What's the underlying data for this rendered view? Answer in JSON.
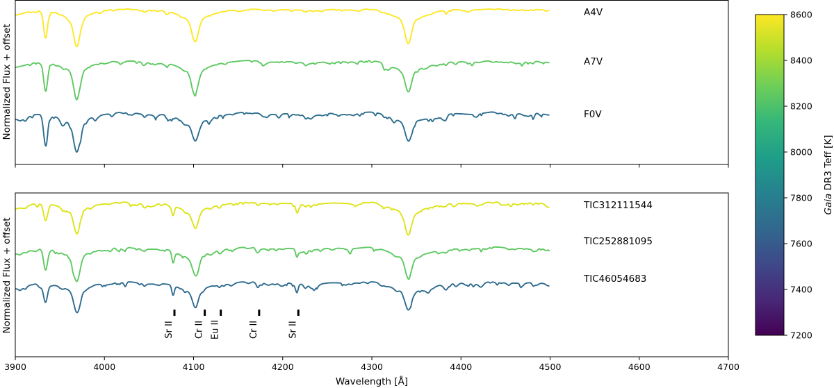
{
  "chart_data": [
    {
      "type": "line",
      "panel": "top",
      "ylabel": "Normalized Flux + offset",
      "xlabel": "",
      "xlim": [
        3900,
        4700
      ],
      "xticks": [
        3900,
        4000,
        4100,
        4200,
        4300,
        4400,
        4500,
        4600,
        4700
      ],
      "xrange_data": [
        3900,
        4500
      ],
      "show_tick_labels": false,
      "series": [
        {
          "name": "A4V",
          "teff": 8600,
          "color": "#fde725",
          "noise": 0.35,
          "sr_ii": false,
          "depths": {
            "CaK": 0.95,
            "CaH": 1.05,
            "Hd": 1.0,
            "Hg": 1.05
          }
        },
        {
          "name": "A7V",
          "teff": 8300,
          "color": "#5ec962",
          "noise": 0.55,
          "sr_ii": false,
          "depths": {
            "CaK": 1.0,
            "CaH": 1.05,
            "Hd": 0.95,
            "Hg": 0.95
          }
        },
        {
          "name": "F0V",
          "teff": 7700,
          "color": "#2c6d8e",
          "noise": 0.8,
          "sr_ii": false,
          "depths": {
            "CaK": 1.1,
            "CaH": 1.1,
            "Hd": 0.85,
            "Hg": 0.85
          }
        }
      ]
    },
    {
      "type": "line",
      "panel": "bottom",
      "xlabel": "Wavelength [Å]",
      "ylabel": "Normalized Flux + offset",
      "xlim": [
        3900,
        4700
      ],
      "xticks": [
        3900,
        4000,
        4100,
        4200,
        4300,
        4400,
        4500,
        4600,
        4700
      ],
      "xrange_data": [
        3900,
        4500
      ],
      "series": [
        {
          "name": "TIC312111544",
          "teff": 8580,
          "color": "#dde318",
          "noise": 0.55,
          "sr_ii": true,
          "depths": {
            "CaK": 0.6,
            "CaH": 0.85,
            "Hd": 0.75,
            "Hg": 0.95
          }
        },
        {
          "name": "TIC252881095",
          "teff": 8300,
          "color": "#5ec962",
          "noise": 0.6,
          "sr_ii": true,
          "depths": {
            "CaK": 0.75,
            "CaH": 0.95,
            "Hd": 0.8,
            "Hg": 0.95
          }
        },
        {
          "name": "TIC46054683",
          "teff": 7720,
          "color": "#2e6b8e",
          "noise": 0.7,
          "sr_ii": true,
          "depths": {
            "CaK": 0.6,
            "CaH": 0.8,
            "Hd": 0.7,
            "Hg": 0.85
          }
        }
      ],
      "line_markers": [
        {
          "label": "Sr II",
          "wavelength": 4077
        },
        {
          "label": "Cr II",
          "wavelength": 4111
        },
        {
          "label": "Eu II",
          "wavelength": 4129
        },
        {
          "label": "Cr II",
          "wavelength": 4172
        },
        {
          "label": "Sr II",
          "wavelength": 4216
        }
      ]
    }
  ],
  "colorbar": {
    "label_italic": "Gaia",
    "label_rest": " DR3 Teff [K]",
    "range": [
      7200,
      8600
    ],
    "ticks": [
      7200,
      7400,
      7600,
      7800,
      8000,
      8200,
      8400,
      8600
    ],
    "colormap": "viridis",
    "stops": [
      "#440154",
      "#482878",
      "#3e4989",
      "#31688e",
      "#26828e",
      "#1f9e89",
      "#35b779",
      "#6ece58",
      "#b5de2b",
      "#fde725"
    ]
  }
}
